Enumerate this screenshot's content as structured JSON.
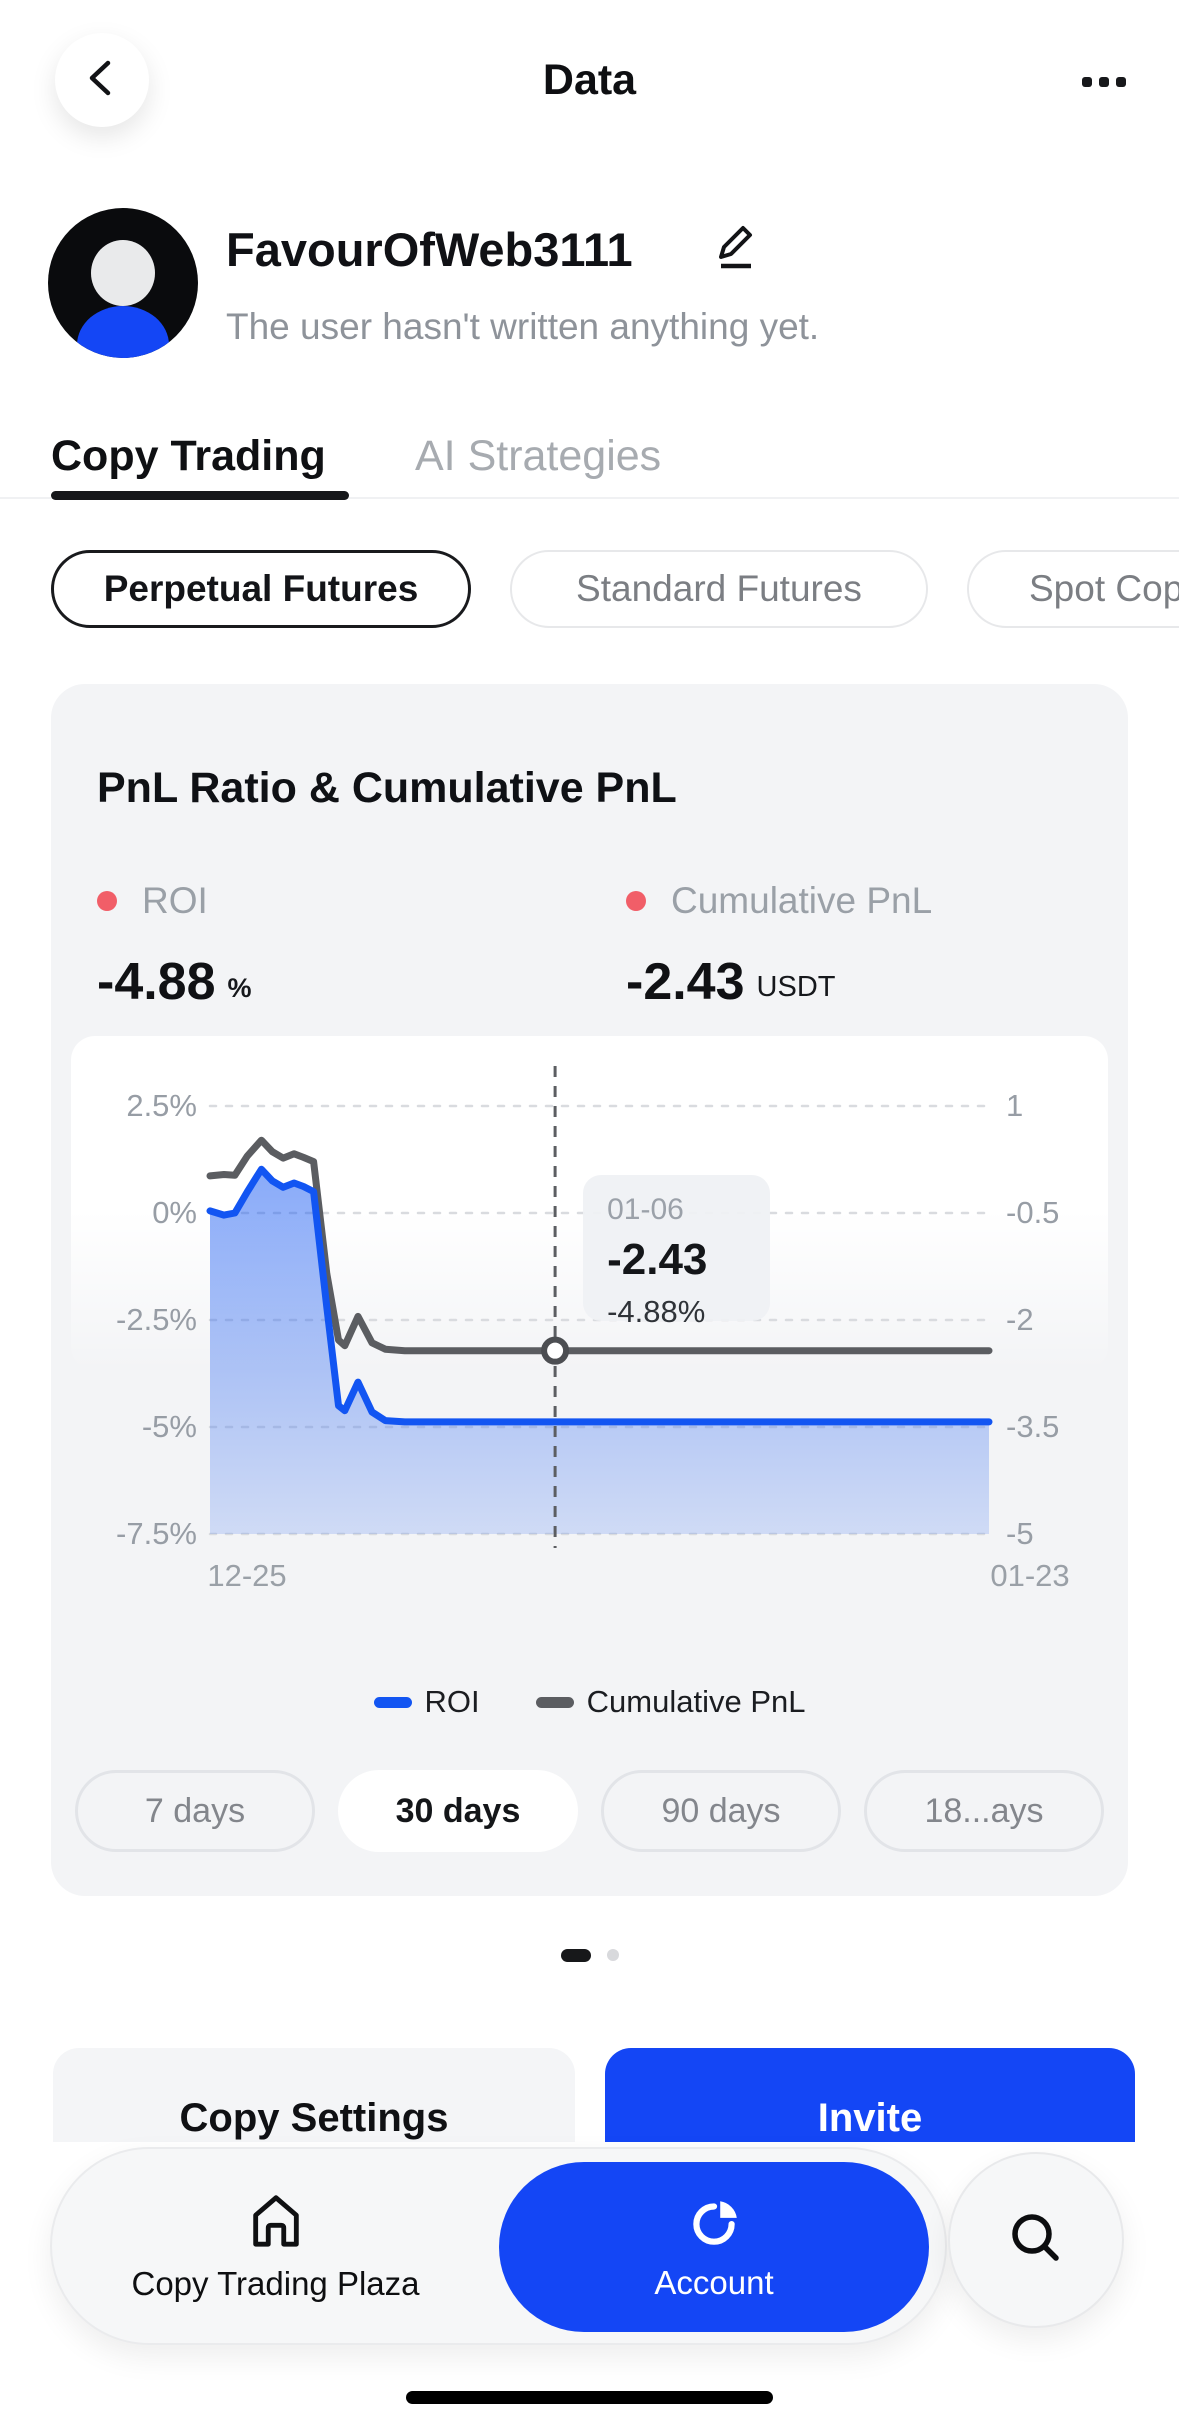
{
  "topbar": {
    "title": "Data"
  },
  "profile": {
    "username": "FavourOfWeb3111",
    "bio": "The user hasn't written anything yet."
  },
  "tabs": [
    {
      "label": "Copy Trading",
      "active": true
    },
    {
      "label": "AI Strategies",
      "active": false
    }
  ],
  "filters": [
    {
      "label": "Perpetual Futures",
      "active": true
    },
    {
      "label": "Standard Futures",
      "active": false
    },
    {
      "label": "Spot Cop",
      "active": false
    }
  ],
  "card": {
    "title": "PnL Ratio & Cumulative PnL",
    "stats": [
      {
        "label": "ROI",
        "value": "-4.88",
        "unit": "%"
      },
      {
        "label": "Cumulative PnL",
        "value": "-2.43",
        "unit": "USDT"
      }
    ],
    "periods": [
      {
        "label": "7 days",
        "active": false
      },
      {
        "label": "30 days",
        "active": true
      },
      {
        "label": "90 days",
        "active": false
      },
      {
        "label": "18...ays",
        "active": false
      }
    ]
  },
  "chart_data": {
    "type": "line",
    "title": "PnL Ratio & Cumulative PnL",
    "x_labels": [
      "12-25",
      "01-23"
    ],
    "grid": "dotted horizontal",
    "legend_position": "bottom",
    "left_axis": {
      "ticks": [
        "2.5%",
        "0%",
        "-2.5%",
        "-5%",
        "-7.5%"
      ],
      "max": 2.5,
      "min": -7.5,
      "unit": "%"
    },
    "right_axis": {
      "ticks": [
        "1",
        "-0.5",
        "-2",
        "-3.5",
        "-5"
      ],
      "max": 1,
      "min": -5,
      "unit": "USDT"
    },
    "series": [
      {
        "name": "ROI",
        "axis": "left",
        "color": "#1255f2",
        "fill": true,
        "points": [
          [
            0,
            0.05
          ],
          [
            0.018,
            -0.05
          ],
          [
            0.032,
            0.0
          ],
          [
            0.048,
            0.5
          ],
          [
            0.066,
            1.02
          ],
          [
            0.08,
            0.75
          ],
          [
            0.094,
            0.6
          ],
          [
            0.108,
            0.7
          ],
          [
            0.12,
            0.62
          ],
          [
            0.133,
            0.5
          ],
          [
            0.15,
            -2.2
          ],
          [
            0.165,
            -4.5
          ],
          [
            0.173,
            -4.62
          ],
          [
            0.19,
            -3.95
          ],
          [
            0.208,
            -4.65
          ],
          [
            0.225,
            -4.85
          ],
          [
            0.25,
            -4.88
          ],
          [
            1,
            -4.88
          ]
        ]
      },
      {
        "name": "Cumulative PnL",
        "axis": "right",
        "color": "#5b5d61",
        "fill": false,
        "points": [
          [
            0,
            0.02
          ],
          [
            0.018,
            0.04
          ],
          [
            0.032,
            0.03
          ],
          [
            0.048,
            0.3
          ],
          [
            0.066,
            0.52
          ],
          [
            0.08,
            0.36
          ],
          [
            0.094,
            0.27
          ],
          [
            0.108,
            0.33
          ],
          [
            0.12,
            0.28
          ],
          [
            0.133,
            0.22
          ],
          [
            0.15,
            -1.35
          ],
          [
            0.165,
            -2.28
          ],
          [
            0.173,
            -2.36
          ],
          [
            0.19,
            -1.95
          ],
          [
            0.208,
            -2.32
          ],
          [
            0.225,
            -2.41
          ],
          [
            0.25,
            -2.43
          ],
          [
            1,
            -2.43
          ]
        ]
      }
    ],
    "tooltip": {
      "x_frac": 0.443,
      "date": "01-06",
      "value": "-2.43",
      "roi": "-4.88%"
    }
  },
  "pager": {
    "pages": 2,
    "active": 0
  },
  "actions": {
    "copy_settings": "Copy Settings",
    "invite": "Invite"
  },
  "nav": {
    "plaza": "Copy Trading Plaza",
    "account": "Account"
  },
  "colors": {
    "brand_blue": "#1446f5",
    "roi_line_blue": "#1255f2",
    "cumulative_line_gray": "#5b5d61",
    "legend_dot_red": "#f15e68",
    "card_bg": "#f3f4f6"
  }
}
